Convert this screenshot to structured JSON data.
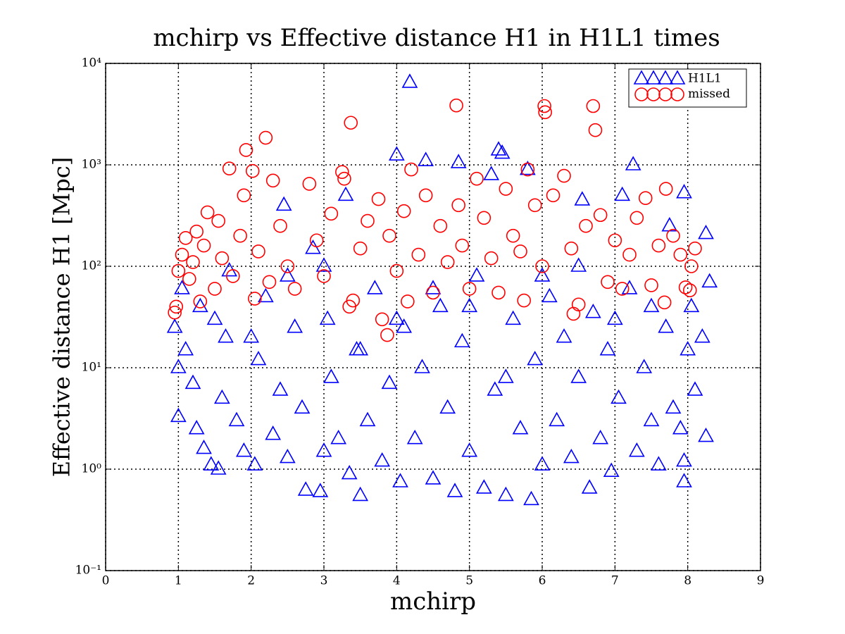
{
  "chart_data": {
    "type": "scatter",
    "title": "mchirp vs Effective distance H1 in H1L1 times",
    "x_label": "mchirp",
    "y_label": "Effective distance H1 [Mpc]",
    "xlim": [
      0,
      9
    ],
    "ylim": [
      0.1,
      10000
    ],
    "xticks": [
      0,
      1,
      2,
      3,
      4,
      5,
      6,
      7,
      8,
      9
    ],
    "yticks": [
      {
        "value": 0.1,
        "label": "10⁻¹"
      },
      {
        "value": 1,
        "label": "10⁰"
      },
      {
        "value": 10,
        "label": "10¹"
      },
      {
        "value": 100,
        "label": "10²"
      },
      {
        "value": 1000,
        "label": "10³"
      },
      {
        "value": 10000,
        "label": "10⁴"
      }
    ],
    "y_scale": "log",
    "grid": true,
    "legend": "upper right",
    "series": [
      {
        "name": "H1L1",
        "color": "#0000ff",
        "marker": "triangle",
        "x": [
          1.0,
          1.0,
          0.95,
          1.05,
          1.1,
          1.2,
          1.25,
          1.3,
          1.35,
          1.45,
          1.55,
          1.6,
          1.65,
          1.7,
          1.8,
          1.9,
          2.05,
          2.1,
          2.2,
          2.3,
          2.4,
          2.45,
          2.5,
          2.6,
          2.7,
          2.75,
          2.85,
          2.95,
          3.0,
          3.05,
          3.1,
          3.2,
          3.3,
          3.35,
          3.45,
          3.5,
          3.6,
          3.7,
          3.8,
          3.9,
          4.0,
          4.05,
          4.1,
          4.18,
          4.25,
          4.35,
          4.4,
          4.5,
          4.6,
          4.7,
          4.8,
          4.85,
          4.9,
          5.0,
          5.1,
          5.2,
          5.3,
          5.35,
          5.4,
          5.45,
          5.5,
          5.6,
          5.7,
          5.8,
          5.85,
          5.9,
          6.0,
          6.1,
          6.2,
          6.3,
          6.4,
          6.5,
          6.55,
          6.65,
          6.7,
          6.8,
          6.9,
          6.95,
          7.05,
          7.1,
          7.2,
          7.25,
          7.3,
          7.4,
          7.5,
          7.6,
          7.7,
          7.75,
          7.8,
          7.9,
          7.95,
          7.95,
          7.95,
          8.0,
          8.05,
          8.1,
          8.2,
          8.25,
          8.25,
          8.3,
          2.0,
          3.0,
          4.0,
          5.0,
          6.0,
          7.0,
          1.5,
          2.5,
          3.5,
          4.5,
          5.5,
          6.5,
          7.5
        ],
        "values": [
          3.3,
          10,
          25,
          60,
          15,
          7,
          2.5,
          40,
          1.6,
          1.1,
          1.0,
          5,
          20,
          90,
          3,
          1.5,
          1.1,
          12,
          50,
          2.2,
          6,
          400,
          1.3,
          25,
          4,
          0.62,
          150,
          0.6,
          1.5,
          30,
          8,
          2,
          500,
          0.9,
          15,
          0.55,
          3,
          60,
          1.2,
          7,
          1250,
          0.75,
          25,
          6500,
          2,
          10,
          1100,
          0.8,
          40,
          4,
          0.6,
          1050,
          18,
          1.5,
          80,
          0.65,
          800,
          6,
          1400,
          1300,
          0.55,
          30,
          2.5,
          900,
          0.5,
          12,
          1.1,
          50,
          3,
          20,
          1.3,
          8,
          450,
          0.65,
          35,
          2,
          15,
          0.95,
          5,
          500,
          60,
          1000,
          1.5,
          10,
          3,
          1.1,
          25,
          250,
          4,
          2.5,
          530,
          1.2,
          0.75,
          15,
          40,
          6,
          20,
          210,
          2.1,
          70,
          20,
          100,
          30,
          40,
          80,
          30,
          30,
          80,
          15,
          60,
          8,
          100,
          40
        ]
      },
      {
        "name": "missed",
        "color": "#ff0000",
        "marker": "circle",
        "x": [
          0.95,
          0.97,
          1.0,
          1.05,
          1.1,
          1.15,
          1.2,
          1.25,
          1.3,
          1.35,
          1.4,
          1.5,
          1.55,
          1.6,
          1.7,
          1.75,
          1.85,
          1.93,
          1.9,
          2.02,
          2.05,
          2.1,
          2.2,
          2.25,
          2.3,
          2.4,
          2.5,
          2.6,
          2.8,
          2.9,
          3.0,
          3.1,
          3.25,
          3.28,
          3.37,
          3.35,
          3.4,
          3.5,
          3.6,
          3.75,
          3.8,
          3.87,
          3.9,
          4.0,
          4.1,
          4.15,
          4.2,
          4.3,
          4.4,
          4.5,
          4.6,
          4.7,
          4.82,
          4.85,
          4.9,
          5.0,
          5.1,
          5.2,
          5.3,
          5.4,
          5.5,
          5.6,
          5.7,
          5.75,
          5.8,
          5.9,
          6.0,
          6.03,
          6.04,
          6.15,
          6.3,
          6.4,
          6.43,
          6.5,
          6.6,
          6.7,
          6.73,
          6.8,
          6.9,
          7.0,
          7.1,
          7.2,
          7.3,
          7.42,
          7.5,
          7.6,
          7.68,
          7.7,
          7.8,
          7.9,
          7.97,
          8.03,
          8.1,
          8.05
        ],
        "values": [
          35,
          40,
          90,
          130,
          190,
          75,
          110,
          220,
          45,
          160,
          340,
          60,
          280,
          120,
          920,
          80,
          200,
          1400,
          500,
          870,
          48,
          140,
          1850,
          70,
          700,
          250,
          100,
          60,
          650,
          180,
          80,
          330,
          850,
          730,
          2600,
          40,
          46,
          150,
          280,
          460,
          30,
          21,
          200,
          90,
          350,
          45,
          900,
          130,
          500,
          55,
          250,
          110,
          3850,
          400,
          160,
          60,
          730,
          300,
          120,
          55,
          580,
          200,
          140,
          46,
          900,
          400,
          100,
          3800,
          3300,
          500,
          780,
          150,
          34,
          42,
          250,
          3800,
          2200,
          320,
          70,
          180,
          60,
          130,
          300,
          470,
          65,
          160,
          44,
          580,
          200,
          130,
          62,
          58,
          150,
          100
        ]
      }
    ]
  }
}
